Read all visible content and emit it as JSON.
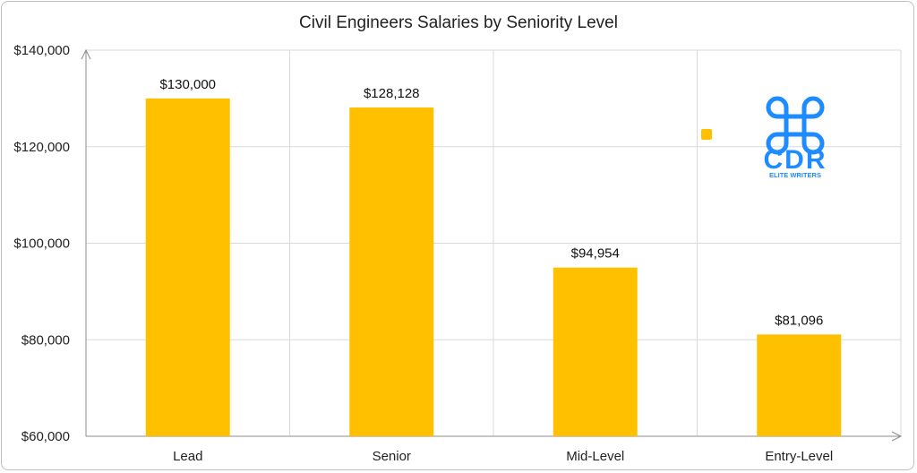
{
  "chart_data": {
    "type": "bar",
    "title": "Civil Engineers Salaries by Seniority Level",
    "categories": [
      "Lead",
      "Senior",
      "Mid-Level",
      "Entry-Level"
    ],
    "values": [
      130000,
      128128,
      94954,
      81096
    ],
    "data_labels": [
      "$130,000",
      "$128,128",
      "$94,954",
      "$81,096"
    ],
    "ylim": [
      60000,
      140000
    ],
    "yticks": [
      60000,
      80000,
      100000,
      120000,
      140000
    ],
    "ytick_labels": [
      "$60,000",
      "$80,000",
      "$100,000",
      "$120,000",
      "$140,000"
    ],
    "xlabel": "",
    "ylabel": "",
    "grid": true,
    "legend": "none",
    "bar_color": "#FFC000"
  },
  "logo": {
    "text": "CDR",
    "subtext": "ELITE WRITERS",
    "color": "#1E8BFF"
  }
}
